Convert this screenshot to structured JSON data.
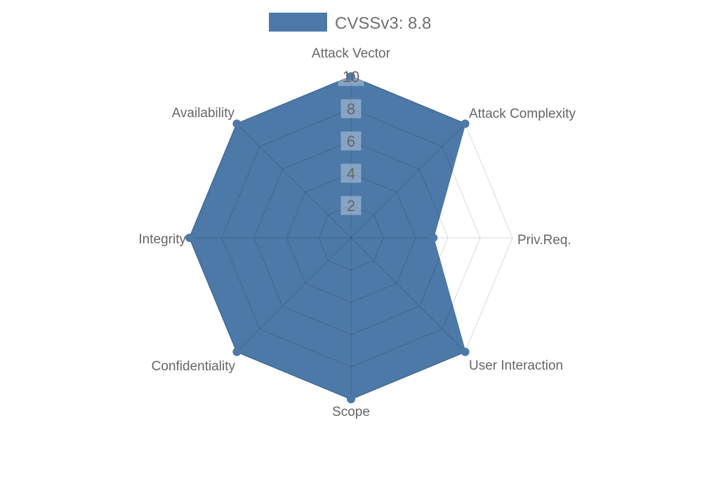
{
  "legend": {
    "label": "CVSSv3: 8.8",
    "swatch_color": "#4d79a8"
  },
  "chart_data": {
    "type": "radar",
    "title": "CVSSv3: 8.8",
    "categories": [
      "Attack Vector",
      "Attack Complexity",
      "Priv.Req.",
      "User Interaction",
      "Scope",
      "Confidentiality",
      "Integrity",
      "Availability"
    ],
    "series": [
      {
        "name": "CVSSv3: 8.8",
        "values": [
          10,
          10,
          5.1,
          10,
          10,
          10,
          10,
          10
        ],
        "fill_color": "#4d79a8",
        "line_color": "#4d79a8",
        "point_markers": true
      }
    ],
    "scale": {
      "min": 0,
      "max": 10,
      "step": 2,
      "tick_labels": [
        "2",
        "4",
        "6",
        "8",
        "10"
      ]
    },
    "grid": {
      "shape": "polygon",
      "rings": 5,
      "line_color": "rgba(0,0,0,0.12)",
      "tick_backdrop_color": "rgba(255,255,255,0.32)"
    },
    "legend_position": "top",
    "label_color": "#666666"
  }
}
